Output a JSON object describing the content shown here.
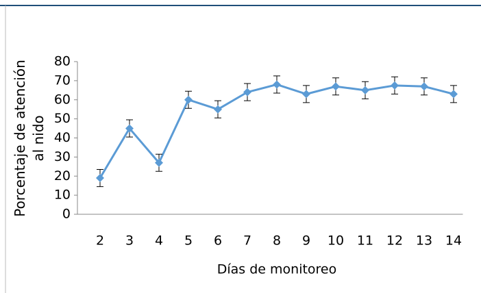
{
  "chart_data": {
    "type": "line",
    "x_label": "Días de monitoreo",
    "y_label": "Porcentaje de atención al nido",
    "categories": [
      "2",
      "3",
      "4",
      "5",
      "6",
      "7",
      "8",
      "9",
      "10",
      "11",
      "12",
      "13",
      "14"
    ],
    "series": [
      {
        "name": null,
        "color": "#5b9bd5",
        "values": [
          19,
          45,
          27,
          60,
          55,
          64,
          68,
          63,
          67,
          65,
          67.5,
          67,
          63
        ],
        "errors": [
          4.5,
          4.5,
          4.5,
          4.5,
          4.5,
          4.5,
          4.5,
          4.5,
          4.5,
          4.5,
          4.5,
          4.5,
          4.5
        ]
      }
    ],
    "ylim": [
      0,
      80
    ],
    "yticks": [
      0,
      10,
      20,
      30,
      40,
      50,
      60,
      70,
      80
    ]
  }
}
